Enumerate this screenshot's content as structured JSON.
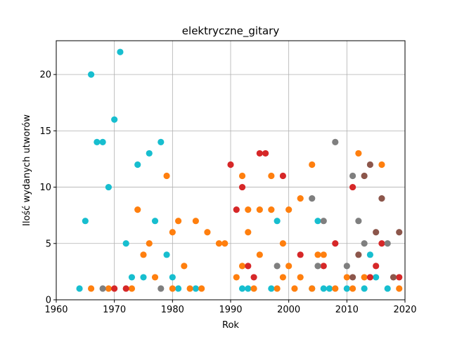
{
  "chart_data": {
    "type": "scatter",
    "title": "elektryczne_gitary",
    "xlabel": "Rok",
    "ylabel": "Ilość wydanych utworów",
    "xlim": [
      1960,
      2020
    ],
    "ylim": [
      0,
      23
    ],
    "xticks": [
      1960,
      1970,
      1980,
      1990,
      2000,
      2010,
      2020
    ],
    "yticks": [
      0,
      5,
      10,
      15,
      20
    ],
    "grid": true,
    "series": [
      {
        "color": "#17becf",
        "points": [
          [
            1964,
            1
          ],
          [
            1965,
            7
          ],
          [
            1966,
            20
          ],
          [
            1967,
            14
          ],
          [
            1968,
            14
          ],
          [
            1969,
            10
          ],
          [
            1970,
            16
          ],
          [
            1971,
            22
          ],
          [
            1972,
            5
          ],
          [
            1973,
            2
          ],
          [
            1974,
            12
          ],
          [
            1975,
            2
          ],
          [
            1976,
            13
          ],
          [
            1977,
            7
          ],
          [
            1978,
            14
          ],
          [
            1979,
            4
          ],
          [
            1980,
            2
          ],
          [
            1981,
            1
          ],
          [
            1984,
            1
          ],
          [
            1992,
            1
          ],
          [
            1993,
            1
          ],
          [
            1997,
            1
          ],
          [
            1998,
            7
          ],
          [
            2004,
            1
          ],
          [
            2005,
            7
          ],
          [
            2006,
            1
          ],
          [
            2007,
            1
          ],
          [
            2010,
            1
          ],
          [
            2013,
            1
          ],
          [
            2014,
            4
          ],
          [
            2015,
            2
          ],
          [
            2017,
            1
          ]
        ]
      },
      {
        "color": "#ff7f0e",
        "points": [
          [
            1966,
            1
          ],
          [
            1969,
            1
          ],
          [
            1973,
            1
          ],
          [
            1974,
            8
          ],
          [
            1975,
            4
          ],
          [
            1976,
            5
          ],
          [
            1977,
            2
          ],
          [
            1979,
            11
          ],
          [
            1980,
            6
          ],
          [
            1980,
            1
          ],
          [
            1981,
            7
          ],
          [
            1982,
            3
          ],
          [
            1983,
            1
          ],
          [
            1984,
            7
          ],
          [
            1985,
            1
          ],
          [
            1986,
            6
          ],
          [
            1988,
            5
          ],
          [
            1989,
            5
          ],
          [
            1991,
            2
          ],
          [
            1992,
            11
          ],
          [
            1992,
            3
          ],
          [
            1993,
            8
          ],
          [
            1993,
            6
          ],
          [
            1994,
            1
          ],
          [
            1995,
            8
          ],
          [
            1995,
            4
          ],
          [
            1997,
            11
          ],
          [
            1997,
            8
          ],
          [
            1998,
            1
          ],
          [
            1999,
            5
          ],
          [
            1999,
            2
          ],
          [
            2000,
            8
          ],
          [
            2000,
            3
          ],
          [
            2001,
            1
          ],
          [
            2002,
            9
          ],
          [
            2002,
            2
          ],
          [
            2004,
            12
          ],
          [
            2004,
            1
          ],
          [
            2005,
            4
          ],
          [
            2006,
            4
          ],
          [
            2008,
            1
          ],
          [
            2010,
            2
          ],
          [
            2011,
            1
          ],
          [
            2012,
            13
          ],
          [
            2013,
            2
          ],
          [
            2016,
            12
          ],
          [
            2019,
            1
          ]
        ]
      },
      {
        "color": "#d62728",
        "points": [
          [
            1970,
            1
          ],
          [
            1972,
            1
          ],
          [
            1990,
            12
          ],
          [
            1991,
            8
          ],
          [
            1992,
            10
          ],
          [
            1993,
            3
          ],
          [
            1994,
            2
          ],
          [
            1995,
            13
          ],
          [
            1996,
            13
          ],
          [
            1999,
            11
          ],
          [
            2002,
            4
          ],
          [
            2006,
            3
          ],
          [
            2008,
            5
          ],
          [
            2011,
            10
          ],
          [
            2014,
            2
          ],
          [
            2015,
            3
          ],
          [
            2016,
            5
          ],
          [
            2019,
            2
          ]
        ]
      },
      {
        "color": "#8c564b",
        "points": [
          [
            2011,
            2
          ],
          [
            2012,
            4
          ],
          [
            2013,
            11
          ],
          [
            2014,
            12
          ],
          [
            2015,
            6
          ],
          [
            2016,
            9
          ],
          [
            2018,
            2
          ],
          [
            2019,
            6
          ]
        ]
      },
      {
        "color": "#7f7f7f",
        "points": [
          [
            1968,
            1
          ],
          [
            1978,
            1
          ],
          [
            1998,
            3
          ],
          [
            2004,
            9
          ],
          [
            2005,
            3
          ],
          [
            2006,
            7
          ],
          [
            2008,
            14
          ],
          [
            2010,
            3
          ],
          [
            2011,
            11
          ],
          [
            2012,
            7
          ],
          [
            2013,
            5
          ],
          [
            2017,
            5
          ]
        ]
      }
    ]
  }
}
